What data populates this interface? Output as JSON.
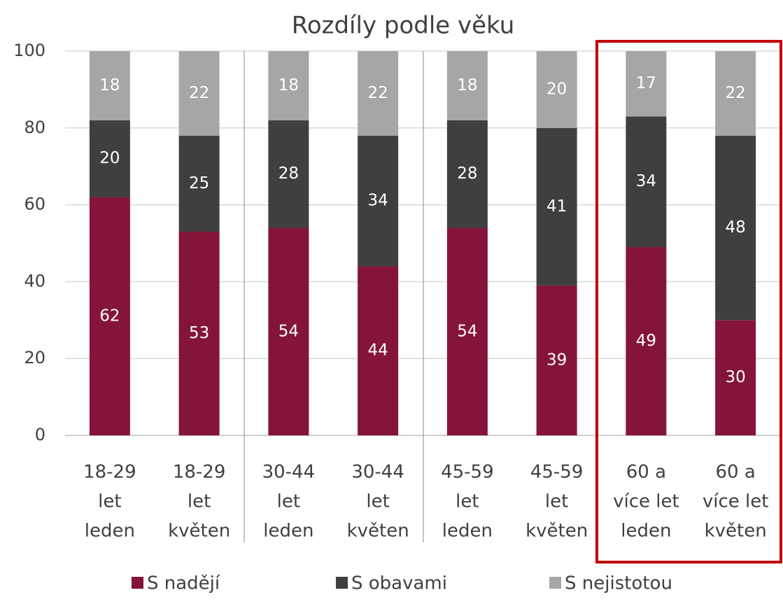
{
  "chart_data": {
    "type": "stacked-bar",
    "title": "Rozdíly podle věku",
    "categories": [
      [
        "18-29",
        "let",
        "leden"
      ],
      [
        "18-29",
        "let",
        "květen"
      ],
      [
        "30-44",
        "let",
        "leden"
      ],
      [
        "30-44",
        "let",
        "květen"
      ],
      [
        "45-59",
        "let",
        "leden"
      ],
      [
        "45-59",
        "let",
        "květen"
      ],
      [
        "60 a",
        "více let",
        "leden"
      ],
      [
        "60 a",
        "více let",
        "květen"
      ]
    ],
    "series": [
      {
        "name": "S nadějí",
        "color": "#841538",
        "values": [
          62,
          53,
          54,
          44,
          54,
          39,
          49,
          30
        ]
      },
      {
        "name": "S obavami",
        "color": "#3f3f3f",
        "values": [
          20,
          25,
          28,
          34,
          28,
          41,
          34,
          48
        ]
      },
      {
        "name": "S nejistotou",
        "color": "#a6a6a6",
        "values": [
          18,
          22,
          18,
          22,
          18,
          20,
          17,
          22
        ]
      }
    ],
    "ylim": [
      0,
      100
    ],
    "yticks": [
      0,
      20,
      40,
      60,
      80,
      100
    ],
    "grid": true,
    "legend": "bottom"
  }
}
